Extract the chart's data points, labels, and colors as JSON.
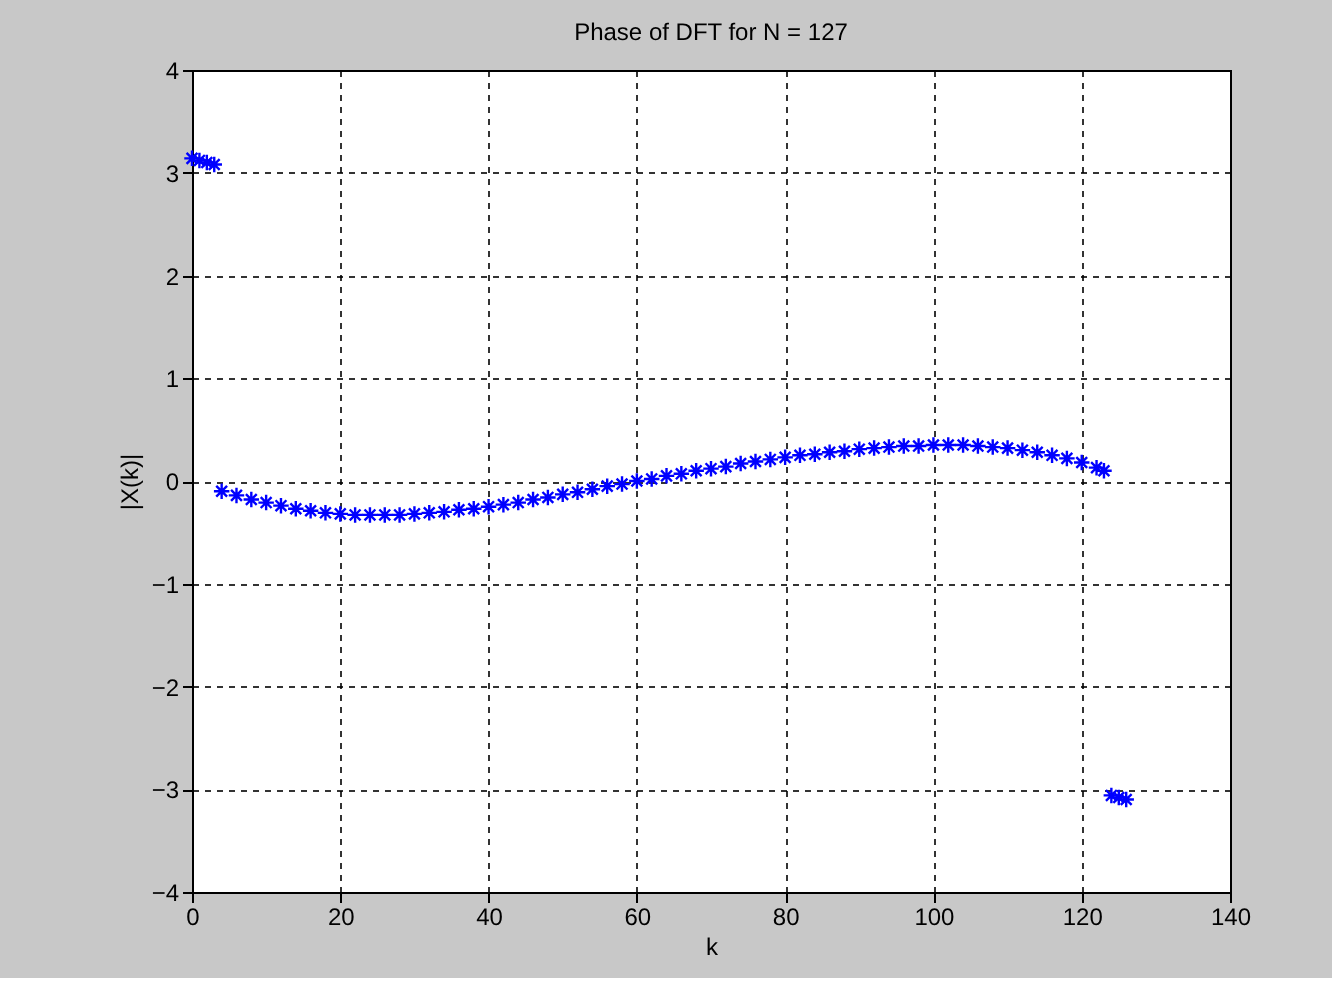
{
  "chart_data": {
    "type": "scatter",
    "title": "Phase of DFT for N = 127",
    "xlabel": "k",
    "ylabel": "|X(k)|",
    "x": [
      0,
      1,
      2,
      3,
      4,
      6,
      8,
      10,
      12,
      14,
      16,
      18,
      20,
      22,
      24,
      26,
      28,
      30,
      32,
      34,
      36,
      38,
      40,
      42,
      44,
      46,
      48,
      50,
      52,
      54,
      56,
      58,
      60,
      62,
      64,
      66,
      68,
      70,
      72,
      74,
      76,
      78,
      80,
      82,
      84,
      86,
      88,
      90,
      92,
      94,
      96,
      98,
      100,
      102,
      104,
      106,
      108,
      110,
      112,
      114,
      116,
      118,
      120,
      122,
      123,
      124,
      125,
      126
    ],
    "series": [
      {
        "color": "#0000ff",
        "values": [
          3.14,
          3.12,
          3.1,
          3.08,
          -0.1,
          -0.14,
          -0.18,
          -0.21,
          -0.24,
          -0.27,
          -0.29,
          -0.31,
          -0.32,
          -0.33,
          -0.33,
          -0.33,
          -0.33,
          -0.32,
          -0.31,
          -0.3,
          -0.28,
          -0.27,
          -0.25,
          -0.23,
          -0.21,
          -0.18,
          -0.16,
          -0.13,
          -0.11,
          -0.08,
          -0.05,
          -0.03,
          0.0,
          0.02,
          0.05,
          0.07,
          0.1,
          0.12,
          0.14,
          0.17,
          0.19,
          0.21,
          0.23,
          0.25,
          0.26,
          0.28,
          0.29,
          0.31,
          0.32,
          0.33,
          0.34,
          0.34,
          0.35,
          0.35,
          0.35,
          0.34,
          0.33,
          0.32,
          0.3,
          0.28,
          0.25,
          0.22,
          0.18,
          0.13,
          0.1,
          -3.06,
          -3.08,
          -3.1
        ]
      }
    ],
    "xlim": [
      0,
      140
    ],
    "xticks": [
      0,
      20,
      40,
      60,
      80,
      100,
      120,
      140
    ],
    "ylim": [
      -4,
      4
    ],
    "yticks": [
      -4,
      -3,
      -2,
      -1,
      0,
      1,
      2,
      3,
      4
    ],
    "grid": true,
    "marker": "cross"
  }
}
